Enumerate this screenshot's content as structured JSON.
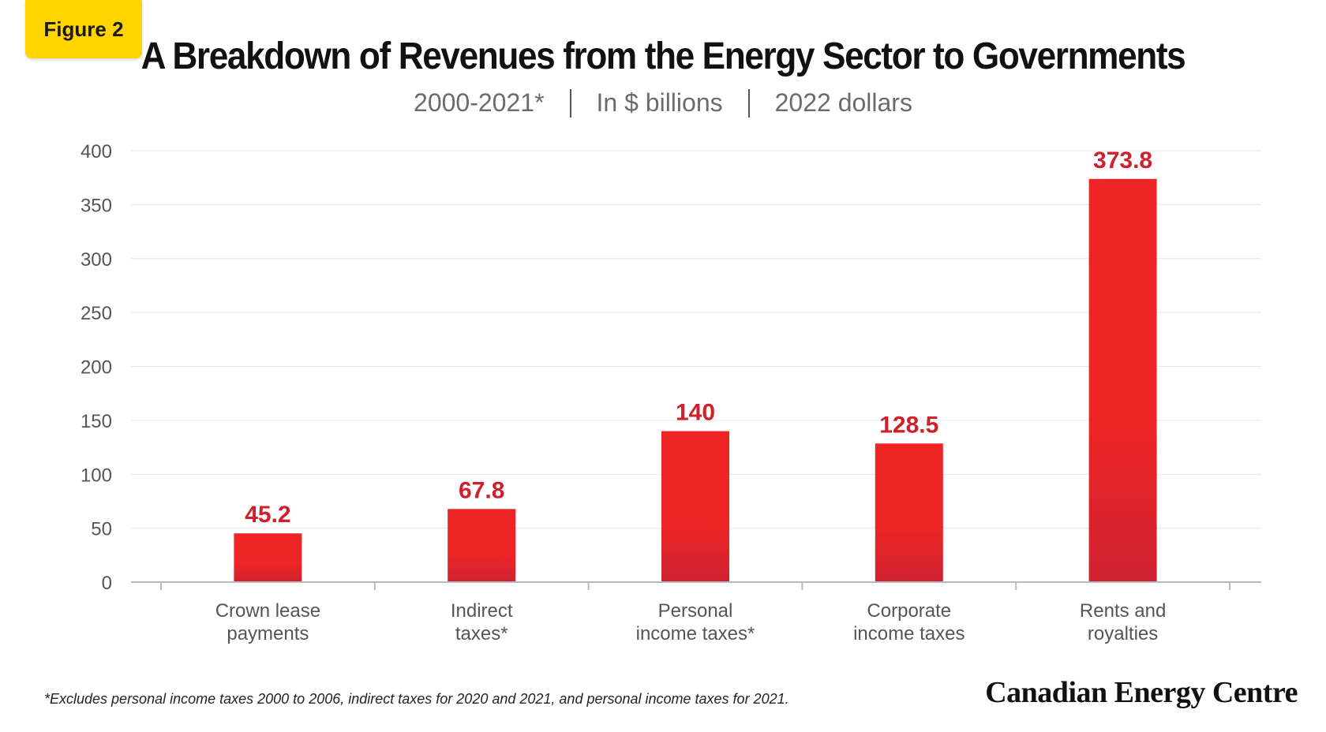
{
  "badge": {
    "label": "Figure 2"
  },
  "header": {
    "title": "A Breakdown of Revenues from the Energy Sector to Governments",
    "subtitle_parts": [
      "2000-2021*",
      "In $ billions",
      "2022 dollars"
    ]
  },
  "footnote": "*Excludes personal income taxes 2000 to 2006, indirect taxes for 2020 and 2021, and personal income taxes for 2021.",
  "logo": {
    "text": "Canadian Energy Centre"
  },
  "colors": {
    "bar_top": "#ee2524",
    "bar_bottom": "#cf2230",
    "value_label": "#d0202e",
    "grid": "#e6e6e6",
    "axis": "#bbbbbb",
    "tick_text": "#555555",
    "badge": "#ffd400"
  },
  "chart_data": {
    "type": "bar",
    "categories": [
      [
        "Crown lease",
        "payments"
      ],
      [
        "Indirect",
        "taxes*"
      ],
      [
        "Personal",
        "income taxes*"
      ],
      [
        "Corporate",
        "income taxes"
      ],
      [
        "Rents and",
        "royalties"
      ]
    ],
    "values": [
      45.2,
      67.8,
      140,
      128.5,
      373.8
    ],
    "value_labels": [
      "45.2",
      "67.8",
      "140",
      "128.5",
      "373.8"
    ],
    "yticks": [
      0,
      50,
      100,
      150,
      200,
      250,
      300,
      350,
      400
    ],
    "ylim": [
      0,
      400
    ],
    "grid": true,
    "title": "A Breakdown of Revenues from the Energy Sector to Governments",
    "xlabel": "",
    "ylabel": ""
  }
}
